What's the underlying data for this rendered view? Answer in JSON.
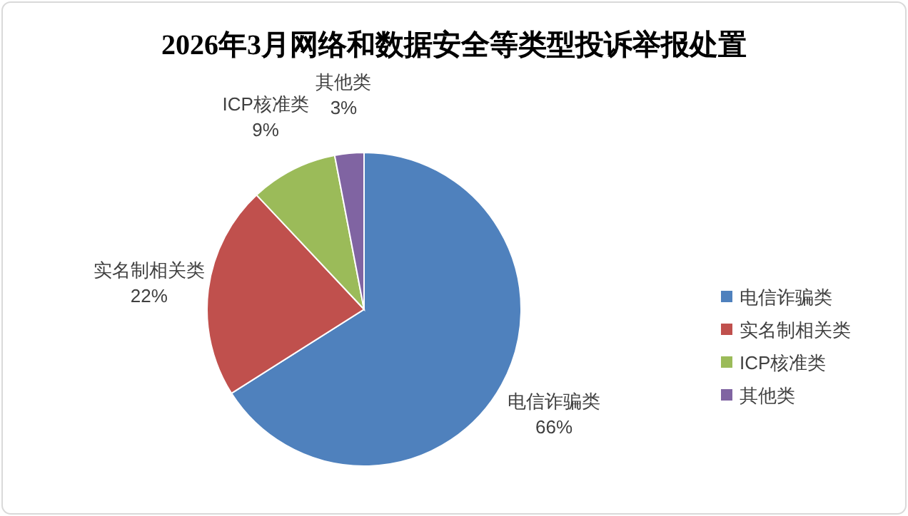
{
  "chart_data": {
    "type": "pie",
    "title": "2026年3月网络和数据安全等类型投诉举报处置",
    "categories": [
      "电信诈骗类",
      "实名制相关类",
      "ICP核准类",
      "其他类"
    ],
    "values": [
      66,
      22,
      9,
      3
    ],
    "colors": [
      "#4f81bd",
      "#c0504d",
      "#9bbb59",
      "#8064a2"
    ],
    "value_labels": [
      "66%",
      "22%",
      "9%",
      "3%"
    ],
    "legend": "right"
  }
}
